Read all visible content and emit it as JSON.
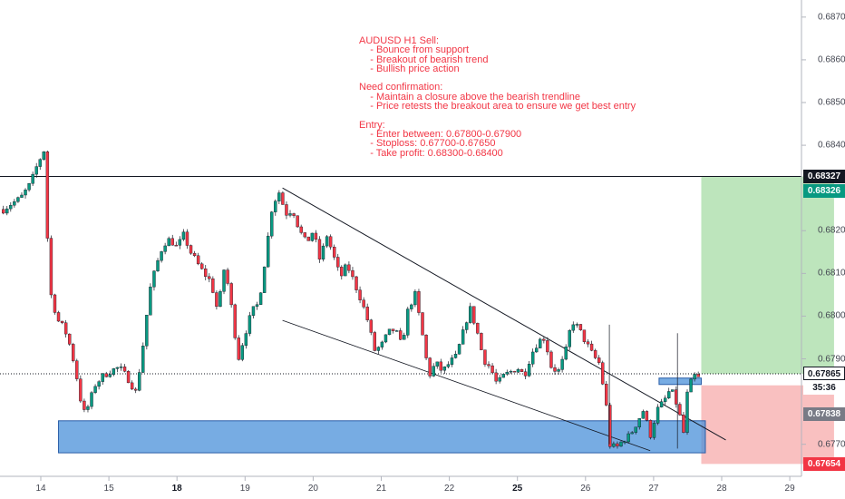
{
  "chart_data": {
    "type": "candlestick",
    "symbol": "AUDUSD",
    "timeframe": "H1",
    "ylim": [
      0.67625,
      0.6874
    ],
    "y_ticks": [
      "0.68700",
      "0.68600",
      "0.68500",
      "0.68400",
      "0.68200",
      "0.68100",
      "0.68000",
      "0.67900",
      "0.67700"
    ],
    "x_ticks": [
      {
        "label": "14",
        "day": 14,
        "bold": false
      },
      {
        "label": "15",
        "day": 15,
        "bold": false
      },
      {
        "label": "18",
        "day": 16,
        "bold": true
      },
      {
        "label": "19",
        "day": 17,
        "bold": false
      },
      {
        "label": "20",
        "day": 18,
        "bold": false
      },
      {
        "label": "21",
        "day": 19,
        "bold": false
      },
      {
        "label": "22",
        "day": 20,
        "bold": false
      },
      {
        "label": "25",
        "day": 21,
        "bold": true
      },
      {
        "label": "26",
        "day": 22,
        "bold": false
      },
      {
        "label": "27",
        "day": 23,
        "bold": false
      },
      {
        "label": "28",
        "day": 24,
        "bold": false
      },
      {
        "label": "29",
        "day": 25,
        "bold": false
      }
    ],
    "price_path": [
      [
        13.45,
        0.6825
      ],
      [
        13.55,
        0.68262
      ],
      [
        13.7,
        0.68275
      ],
      [
        13.85,
        0.6831
      ],
      [
        13.95,
        0.68355
      ],
      [
        14.05,
        0.6839
      ],
      [
        14.1,
        0.68175
      ],
      [
        14.15,
        0.6805
      ],
      [
        14.25,
        0.6799
      ],
      [
        14.35,
        0.6797
      ],
      [
        14.45,
        0.6792
      ],
      [
        14.55,
        0.6784
      ],
      [
        14.62,
        0.6777
      ],
      [
        14.7,
        0.6779
      ],
      [
        14.8,
        0.6784
      ],
      [
        14.9,
        0.67858
      ],
      [
        15.0,
        0.6787
      ],
      [
        15.15,
        0.6788
      ],
      [
        15.3,
        0.6785
      ],
      [
        15.4,
        0.6782
      ],
      [
        15.5,
        0.6793
      ],
      [
        15.6,
        0.6806
      ],
      [
        15.7,
        0.6812
      ],
      [
        15.8,
        0.6817
      ],
      [
        15.9,
        0.6818
      ],
      [
        16.0,
        0.6816
      ],
      [
        16.1,
        0.6819
      ],
      [
        16.2,
        0.6815
      ],
      [
        16.35,
        0.6811
      ],
      [
        16.5,
        0.6808
      ],
      [
        16.6,
        0.6801
      ],
      [
        16.7,
        0.6812
      ],
      [
        16.8,
        0.6802
      ],
      [
        16.9,
        0.679
      ],
      [
        17.0,
        0.6796
      ],
      [
        17.1,
        0.6801
      ],
      [
        17.2,
        0.6803
      ],
      [
        17.3,
        0.6814
      ],
      [
        17.4,
        0.6826
      ],
      [
        17.5,
        0.6829
      ],
      [
        17.6,
        0.6824
      ],
      [
        17.7,
        0.6825
      ],
      [
        17.8,
        0.682
      ],
      [
        17.9,
        0.6817
      ],
      [
        18.0,
        0.682
      ],
      [
        18.1,
        0.6813
      ],
      [
        18.2,
        0.6819
      ],
      [
        18.3,
        0.6814
      ],
      [
        18.4,
        0.6809
      ],
      [
        18.5,
        0.6812
      ],
      [
        18.6,
        0.6808
      ],
      [
        18.7,
        0.6804
      ],
      [
        18.8,
        0.6799
      ],
      [
        18.9,
        0.6792
      ],
      [
        19.0,
        0.6793
      ],
      [
        19.1,
        0.6796
      ],
      [
        19.2,
        0.6797
      ],
      [
        19.3,
        0.6793
      ],
      [
        19.4,
        0.6802
      ],
      [
        19.5,
        0.6805
      ],
      [
        19.6,
        0.6796
      ],
      [
        19.7,
        0.6786
      ],
      [
        19.8,
        0.6789
      ],
      [
        19.9,
        0.6787
      ],
      [
        20.0,
        0.6789
      ],
      [
        20.1,
        0.67905
      ],
      [
        20.2,
        0.6796
      ],
      [
        20.3,
        0.6802
      ],
      [
        20.4,
        0.6797
      ],
      [
        20.5,
        0.679
      ],
      [
        20.6,
        0.6788
      ],
      [
        20.7,
        0.6784
      ],
      [
        20.8,
        0.6786
      ],
      [
        20.9,
        0.6787
      ],
      [
        21.0,
        0.6788
      ],
      [
        21.1,
        0.6786
      ],
      [
        21.2,
        0.6791
      ],
      [
        21.3,
        0.6794
      ],
      [
        21.4,
        0.6795
      ],
      [
        21.5,
        0.6788
      ],
      [
        21.6,
        0.6787
      ],
      [
        21.7,
        0.6791
      ],
      [
        21.8,
        0.6799
      ],
      [
        21.9,
        0.6797
      ],
      [
        22.0,
        0.6794
      ],
      [
        22.1,
        0.6791
      ],
      [
        22.2,
        0.6789
      ],
      [
        22.3,
        0.678
      ],
      [
        22.35,
        0.677
      ],
      [
        22.45,
        0.6769
      ],
      [
        22.55,
        0.6771
      ],
      [
        22.65,
        0.6772
      ],
      [
        22.75,
        0.6775
      ],
      [
        22.85,
        0.6778
      ],
      [
        22.95,
        0.6772
      ],
      [
        23.05,
        0.6778
      ],
      [
        23.15,
        0.678
      ],
      [
        23.25,
        0.6783
      ],
      [
        23.35,
        0.6779
      ],
      [
        23.45,
        0.6772
      ],
      [
        23.5,
        0.6783
      ],
      [
        23.6,
        0.6786
      ],
      [
        23.7,
        0.6785
      ]
    ],
    "h_line_price": 0.68327,
    "dotted_line_price": 0.67865,
    "trendline_upper": [
      [
        17.55,
        0.683
      ],
      [
        24.06,
        0.6771
      ]
    ],
    "trendline_lower": [
      [
        17.55,
        0.6799
      ],
      [
        22.95,
        0.67685
      ]
    ],
    "zones": {
      "support": {
        "x0": 14.26,
        "x1": 23.76,
        "y0": 0.6768,
        "y1": 0.67755,
        "color": "#4a90d9"
      },
      "breakout_area": {
        "x0": 23.08,
        "x1": 23.7,
        "y0": 0.6784,
        "y1": 0.67855,
        "color": "#4a90d9"
      },
      "take_profit": {
        "x0": 23.7,
        "x1": 25.65,
        "y0": 0.67865,
        "y1": 0.68327,
        "color": "#bde5bc"
      },
      "stop_loss": {
        "x0": 23.7,
        "x1": 25.65,
        "y0": 0.67654,
        "y1": 0.67838,
        "color": "#f9c0c0"
      }
    },
    "price_tags": [
      {
        "text": "0.68327",
        "value": 0.68327,
        "bg": "#131722",
        "fg": "#ffffff"
      },
      {
        "text": "0.68326",
        "value": 0.68326,
        "bg": "#089981",
        "fg": "#ffffff",
        "offset": 1
      },
      {
        "text": "0.67865",
        "value": 0.67865,
        "bg": "#ffffff",
        "fg": "#131722",
        "border": "#131722"
      },
      {
        "text": "35:36",
        "value": 0.67865,
        "bg": "#ffffff",
        "fg": "#131722",
        "offset": 1
      },
      {
        "text": "0.67838",
        "value": 0.67838,
        "bg": "#787b86",
        "fg": "#ffffff",
        "offset": 2
      },
      {
        "text": "0.67654",
        "value": 0.67654,
        "bg": "#f23645",
        "fg": "#ffffff"
      }
    ],
    "colors": {
      "up": "#089981",
      "down": "#f23645",
      "grid": "#e0e3eb",
      "axis": "#434651"
    }
  },
  "annotation": {
    "lines": [
      "AUDUSD H1 Sell:",
      "    - Bounce from support",
      "    - Breakout of bearish trend",
      "    - Bullish price action",
      "",
      "Need confirmation:",
      "    - Maintain a closure above the bearish trendline",
      "    - Price retests the breakout area to ensure we get best entry",
      "",
      "Entry:",
      "    - Enter between: 0.67800-0.67900",
      "    - Stoploss: 0.67700-0.67650",
      "    - Take profit: 0.68300-0.68400"
    ]
  }
}
